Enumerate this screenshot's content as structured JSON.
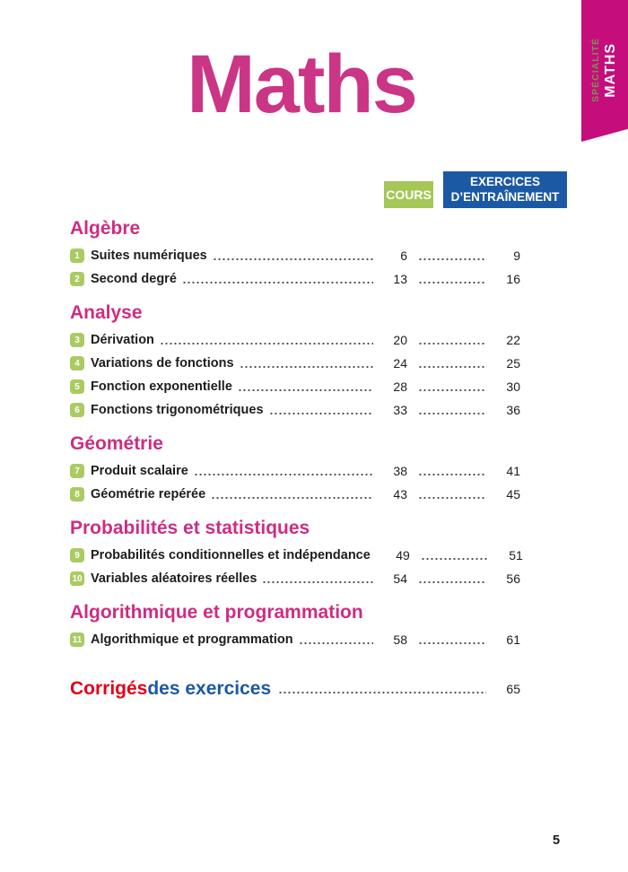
{
  "ribbon": {
    "specialite_label": "SPÉCIALITÉ",
    "maths_label": "MATHS"
  },
  "title": "Maths",
  "column_headers": {
    "cours": "COURS",
    "exercices_line1": "EXERCICES",
    "exercices_line2": "D’ENTRAÎNEMENT"
  },
  "colors": {
    "magenta_title": "#cb3586",
    "magenta_heading": "#cd2d82",
    "ribbon_magenta": "#c50d7c",
    "ribbon_specialite_text": "#7e8f52",
    "cours_green": "#a5c757",
    "badge_green": "#a9cb62",
    "exercices_blue": "#1c59a4",
    "corriges_red": "#e2001a",
    "body_text": "#1d1d1b"
  },
  "sections": [
    {
      "heading": "Algèbre",
      "chapters": [
        {
          "num": "1",
          "title": "Suites numériques",
          "cours_page": "6",
          "exercices_page": "9"
        },
        {
          "num": "2",
          "title": "Second degré",
          "cours_page": "13",
          "exercices_page": "16"
        }
      ]
    },
    {
      "heading": "Analyse",
      "chapters": [
        {
          "num": "3",
          "title": "Dérivation",
          "cours_page": "20",
          "exercices_page": "22"
        },
        {
          "num": "4",
          "title": "Variations de fonctions",
          "cours_page": "24",
          "exercices_page": "25"
        },
        {
          "num": "5",
          "title": "Fonction exponentielle",
          "cours_page": "28",
          "exercices_page": "30"
        },
        {
          "num": "6",
          "title": "Fonctions trigonométriques",
          "cours_page": "33",
          "exercices_page": "36"
        }
      ]
    },
    {
      "heading": "Géométrie",
      "chapters": [
        {
          "num": "7",
          "title": "Produit scalaire",
          "cours_page": "38",
          "exercices_page": "41"
        },
        {
          "num": "8",
          "title": "Géométrie repérée",
          "cours_page": "43",
          "exercices_page": "45"
        }
      ]
    },
    {
      "heading": "Probabilités et statistiques",
      "chapters": [
        {
          "num": "9",
          "title": "Probabilités conditionnelles et indépendance",
          "cours_page": "49",
          "exercices_page": "51"
        },
        {
          "num": "10",
          "title": "Variables aléatoires réelles",
          "cours_page": "54",
          "exercices_page": "56"
        }
      ]
    },
    {
      "heading": "Algorithmique et programmation",
      "chapters": [
        {
          "num": "11",
          "title": "Algorithmique et programmation",
          "cours_page": "58",
          "exercices_page": "61"
        }
      ]
    }
  ],
  "footer_link": {
    "label_red": "Corrigés",
    "label_blue": " des exercices",
    "page": "65"
  },
  "page_number": "5"
}
